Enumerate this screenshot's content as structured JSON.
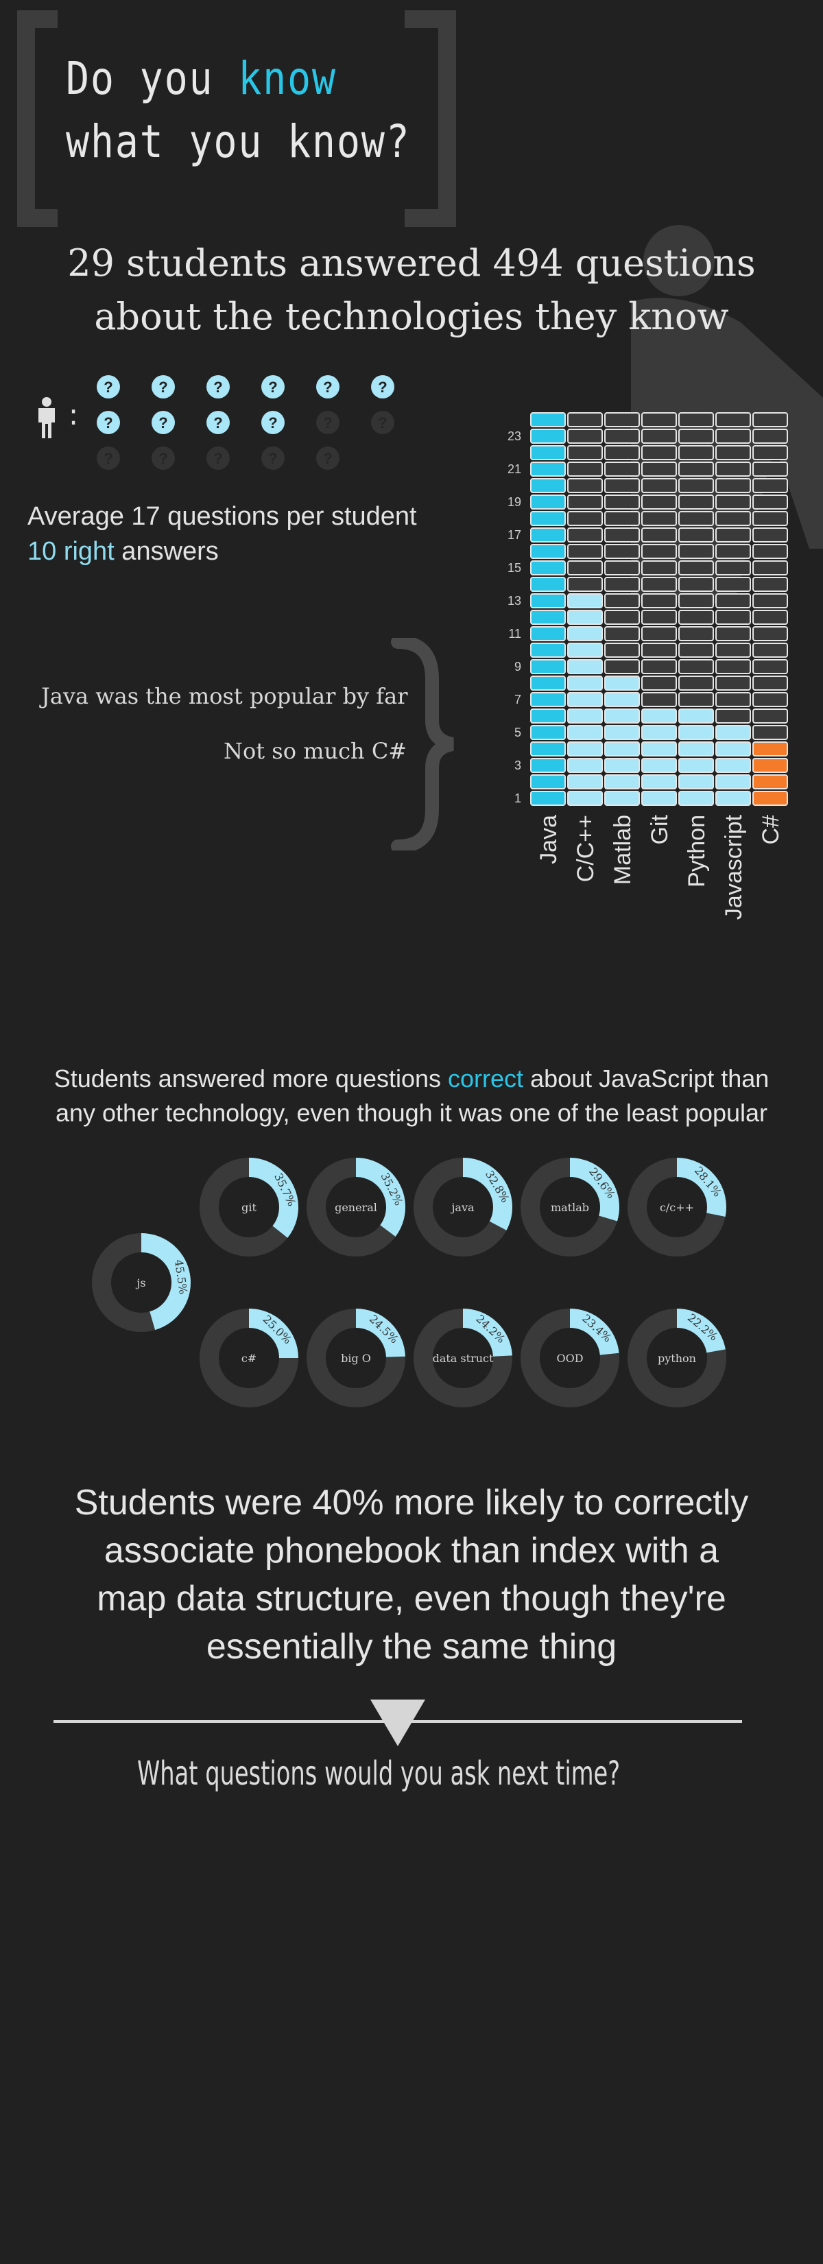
{
  "colors": {
    "accent": "#29c6e8",
    "light": "#a8e6f8",
    "orange": "#f47b2a",
    "bg": "#212121",
    "cell": "#3a3a3a"
  },
  "title": {
    "line1_pre": "Do you ",
    "line1_highlight": "know",
    "line2": "what you know?"
  },
  "headline": {
    "line1": "29 students answered 494 questions",
    "line2": "about the technologies they know"
  },
  "stats": {
    "average_text": "Average 17 questions per student",
    "right_highlight": "10 right",
    "right_suffix": " answers",
    "icons": {
      "person": "person-icon",
      "question": "question-circle-icon",
      "filled": 10,
      "total": 17
    }
  },
  "notes": {
    "java": "Java was the most popular by far",
    "csharp": "Not so much C#"
  },
  "middle": {
    "line1_pre": "Students answered more questions ",
    "line1_highlight": "correct",
    "line1_post": " about JavaScript than",
    "line2": "any other technology, even though it was one of the least popular"
  },
  "conclusion": {
    "line1": "Students were 40% more likely to correctly",
    "line2": "associate phonebook than index with a",
    "line3": "map data structure, even though they're",
    "line4": "essentially the same thing"
  },
  "footer": {
    "question": "What questions would you ask next time?",
    "icon": "triangle-down-icon"
  },
  "chart_data": [
    {
      "type": "bar",
      "title": "",
      "categories": [
        "Java",
        "C/C++",
        "Matlab",
        "Git",
        "Python",
        "Javascript",
        "C#"
      ],
      "values": [
        24,
        13,
        8,
        6,
        6,
        5,
        4
      ],
      "ylim": [
        0,
        24
      ],
      "y_ticks": [
        "1",
        "3",
        "5",
        "7",
        "9",
        "11",
        "13",
        "15",
        "17",
        "19",
        "21",
        "23"
      ],
      "style": "unit grid of squares, 24 rows per column",
      "colors": [
        "#29c6e8",
        "#a8e6f8",
        "#a8e6f8",
        "#a8e6f8",
        "#a8e6f8",
        "#a8e6f8",
        "#f47b2a"
      ]
    },
    {
      "type": "pie",
      "subtype": "donut",
      "title": "",
      "categories": [
        "js",
        "git",
        "general",
        "java",
        "matlab",
        "c/c++",
        "c#",
        "big O",
        "data struct",
        "OOD",
        "python"
      ],
      "value_labels": [
        "45.5%",
        "35.7%",
        "35.2%",
        "32.8%",
        "29.6%",
        "28.1%",
        "25.0%",
        "24.5%",
        "24.2%",
        "23.4%",
        "22.2%"
      ],
      "values": [
        45.5,
        35.7,
        35.2,
        32.8,
        29.6,
        28.1,
        25.0,
        24.5,
        24.2,
        23.4,
        22.2
      ],
      "unit": "% correct"
    }
  ]
}
